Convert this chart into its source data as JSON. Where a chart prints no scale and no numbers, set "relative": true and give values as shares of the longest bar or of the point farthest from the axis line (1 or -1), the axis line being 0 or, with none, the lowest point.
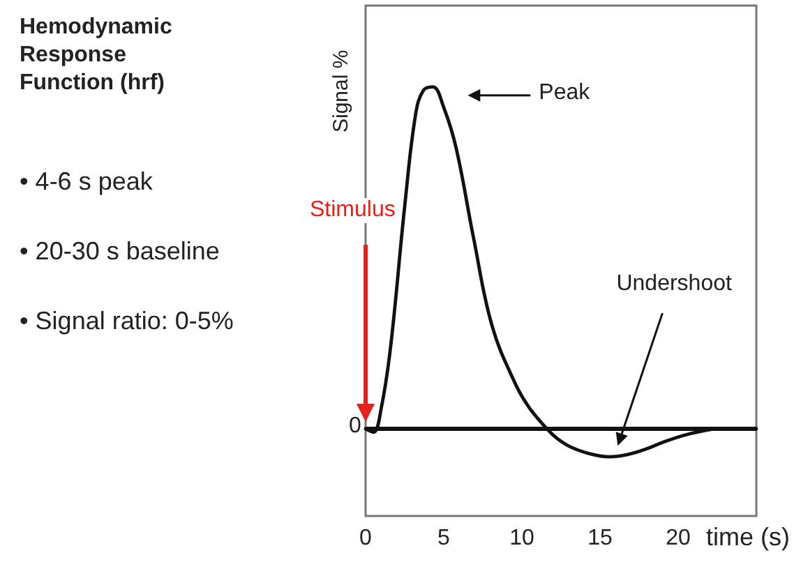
{
  "chart_data": {
    "type": "line",
    "relative": true,
    "title": "Hemodynamic Response Function (hrf)",
    "xlabel": "time (s)",
    "ylabel": "Signal %",
    "xlim": [
      0,
      25
    ],
    "xticks": [
      0,
      5,
      10,
      15,
      20
    ],
    "grid": false,
    "marker": "none",
    "line_style": "solid",
    "ref_lines": [
      {
        "axis": "y",
        "value": 0,
        "color": "#111111"
      }
    ],
    "annotations": [
      "• 4-6 s peak",
      "• 20-30 s baseline",
      "• Signal ratio: 0-5%",
      "Stimulus",
      "Peak",
      "Undershoot",
      {
        "text": "0",
        "x": 0,
        "y": 0
      }
    ],
    "series": [
      {
        "color": "#111111",
        "x": [
          0,
          0.5,
          1,
          1.6,
          2.5,
          3.2,
          3.7,
          4.3,
          5,
          5.8,
          6.9,
          8.1,
          9.6,
          10.5,
          11.6,
          12.3,
          13.2,
          14.5,
          15.6,
          16.8,
          17.9,
          19,
          20.3,
          21.5,
          22.6,
          25
        ],
        "values": [
          0,
          -0.01,
          0.06,
          0.24,
          0.65,
          0.92,
          0.99,
          1,
          0.94,
          0.82,
          0.56,
          0.3,
          0.13,
          0.06,
          0,
          -0.03,
          -0.055,
          -0.075,
          -0.082,
          -0.075,
          -0.06,
          -0.04,
          -0.02,
          -0.007,
          0,
          0
        ]
      }
    ]
  }
}
